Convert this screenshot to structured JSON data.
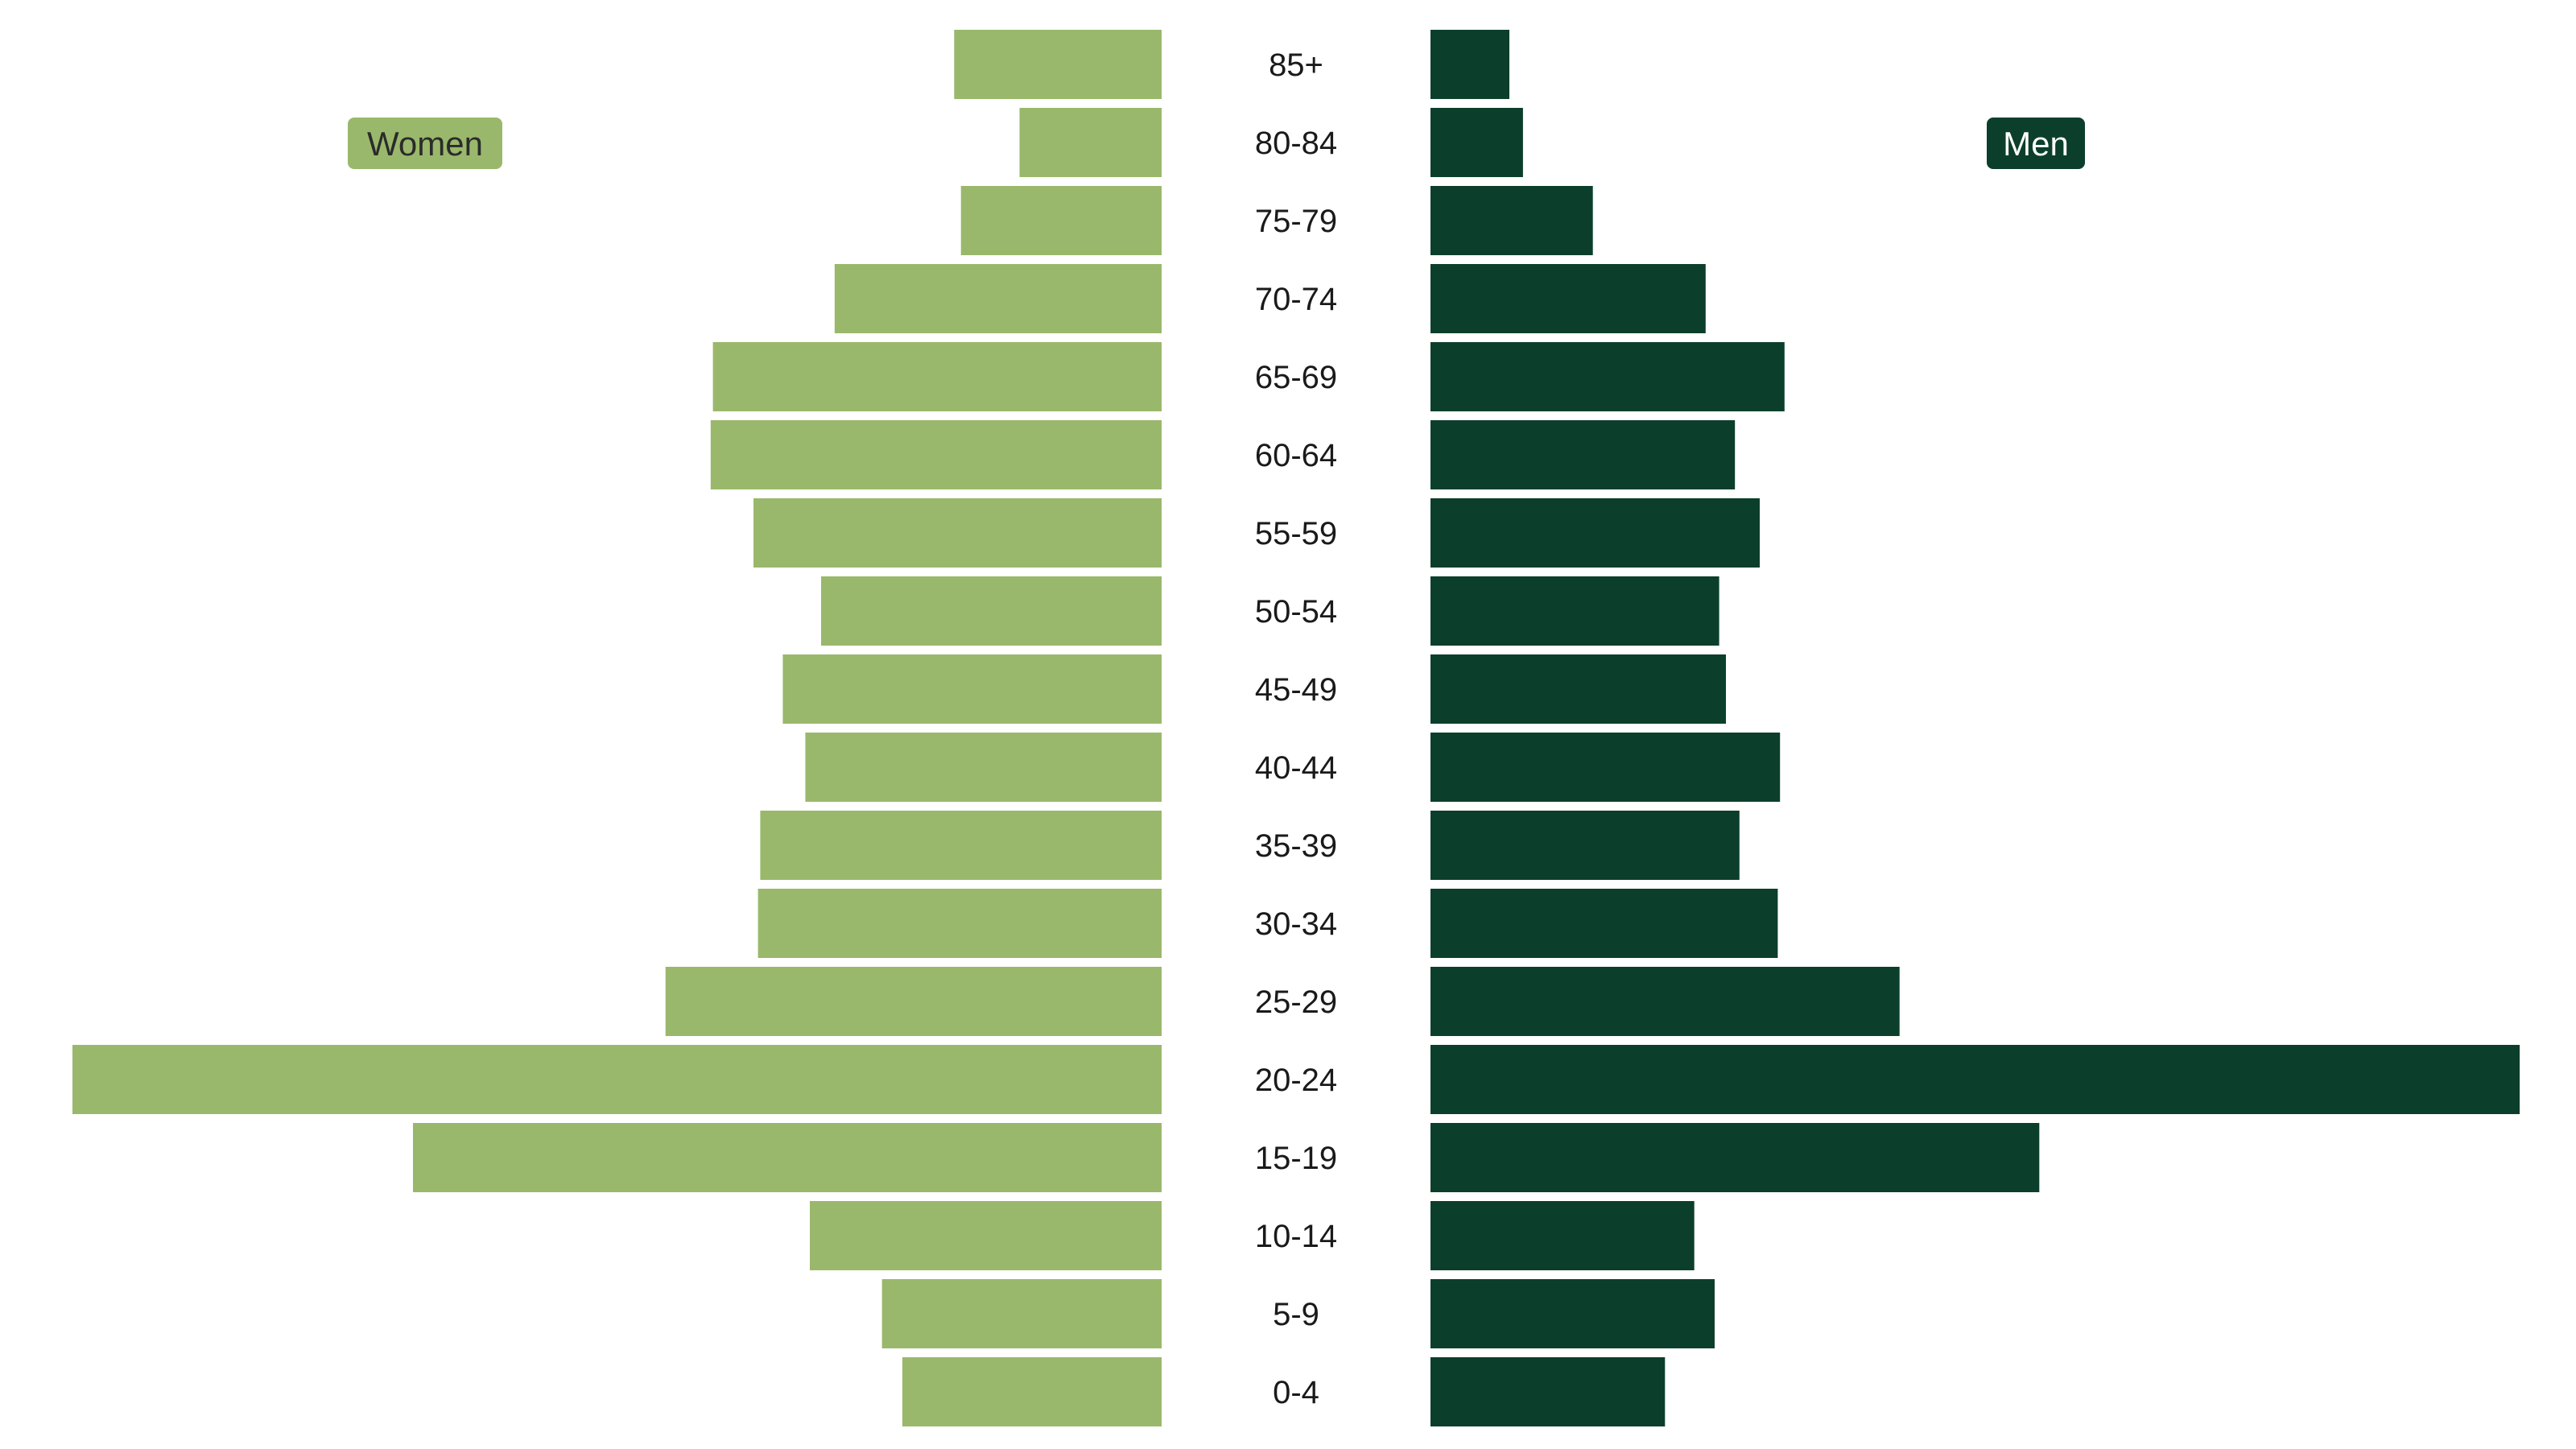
{
  "chart_data": {
    "type": "bar",
    "orientation": "horizontal",
    "layout": "population-pyramid",
    "categories": [
      "85+",
      "80-84",
      "75-79",
      "70-74",
      "65-69",
      "60-64",
      "55-59",
      "50-54",
      "45-49",
      "40-44",
      "35-39",
      "30-34",
      "25-29",
      "20-24",
      "15-19",
      "10-14",
      "5-9",
      "0-4"
    ],
    "series": [
      {
        "name": "Women",
        "side": "left",
        "color": "#9ab86b",
        "values": [
          0.92,
          0.63,
          0.89,
          1.45,
          1.99,
          2.0,
          1.81,
          1.51,
          1.68,
          1.58,
          1.78,
          1.79,
          2.2,
          4.83,
          3.32,
          1.56,
          1.24,
          1.15
        ]
      },
      {
        "name": "Men",
        "side": "right",
        "color": "#0b3f2b",
        "values": [
          0.35,
          0.41,
          0.72,
          1.22,
          1.57,
          1.35,
          1.46,
          1.28,
          1.31,
          1.55,
          1.37,
          1.54,
          2.08,
          4.83,
          2.7,
          1.17,
          1.26,
          1.04
        ]
      }
    ],
    "xlim": [
      0,
      4.83
    ],
    "grid": false,
    "axes_visible": false,
    "legend": [
      {
        "label": "Women",
        "position": "top-left",
        "color": "#9ab86b",
        "text_color": "#2b2b2b"
      },
      {
        "label": "Men",
        "position": "top-right",
        "color": "#0b3f2b",
        "text_color": "#ffffff"
      }
    ]
  }
}
